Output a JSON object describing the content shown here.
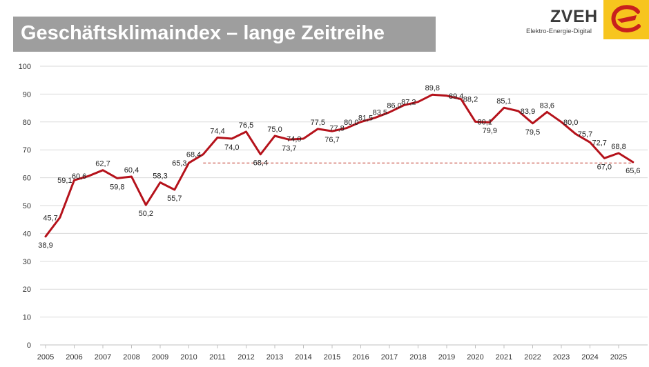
{
  "header": {
    "title": "Geschäftsklimaindex – lange Zeitreihe",
    "brand": "ZVEH",
    "tagline": "Elektro-Energie-Digital",
    "brand_color": "#f7c51e",
    "logo_icon": "zveh-e-logo-icon"
  },
  "chart_data": {
    "type": "line",
    "title": "Geschäftsklimaindex – lange Zeitreihe",
    "xlabel": "",
    "ylabel": "",
    "ylim": [
      0,
      100
    ],
    "xlim": [
      2005,
      2026
    ],
    "yticks": [
      0,
      10,
      20,
      30,
      40,
      50,
      60,
      70,
      80,
      90,
      100
    ],
    "xticks": [
      2005,
      2006,
      2007,
      2008,
      2009,
      2010,
      2011,
      2012,
      2013,
      2014,
      2015,
      2016,
      2017,
      2018,
      2019,
      2020,
      2021,
      2022,
      2023,
      2024,
      2025
    ],
    "grid": true,
    "legend": "none",
    "line_color": "#b5121b",
    "series": [
      {
        "x": [
          2005.0,
          2005.5,
          2006.0,
          2006.5,
          2007.0,
          2007.5,
          2008.0,
          2008.5,
          2009.0,
          2009.5,
          2010.0,
          2010.5,
          2011.0,
          2011.5,
          2012.0,
          2012.5,
          2013.0,
          2013.5,
          2014.0,
          2014.5,
          2015.0,
          2015.5,
          2016.0,
          2016.5,
          2017.0,
          2017.5,
          2018.0,
          2018.5,
          2019.0,
          2019.5,
          2020.0,
          2020.5,
          2021.0,
          2021.5,
          2022.0,
          2022.5,
          2023.0,
          2023.5,
          2024.0,
          2024.5,
          2025.0,
          2025.5
        ],
        "values": [
          38.9,
          45.7,
          59.1,
          60.6,
          62.7,
          59.8,
          60.4,
          50.2,
          58.3,
          55.7,
          65.3,
          68.4,
          74.4,
          74.0,
          76.5,
          68.4,
          75.0,
          73.7,
          74.0,
          77.5,
          76.7,
          77.8,
          80.0,
          81.5,
          83.5,
          86.0,
          87.2,
          89.8,
          89.4,
          88.2,
          80.1,
          79.9,
          85.1,
          83.9,
          79.5,
          83.6,
          80.0,
          75.7,
          72.7,
          67.0,
          68.8,
          65.6
        ],
        "labels": [
          "38,9",
          "45,7",
          "59,1",
          "60,6",
          "62,7",
          "59,8",
          "60,4",
          "50,2",
          "58,3",
          "55,7",
          "65,3",
          "68,4",
          "74,4",
          "74,0",
          "76,5",
          "68,4",
          "75,0",
          "73,7",
          "74,0",
          "77,5",
          "76,7",
          "77,8",
          "80,0",
          "81,5",
          "83,5",
          "86,0",
          "87,2",
          "89,8",
          "89,4",
          "88,2",
          "80,1",
          "79,9",
          "85,1",
          "83,9",
          "79,5",
          "83,6",
          "80,0",
          "75,7",
          "72,7",
          "67,0",
          "68,8",
          "65,6"
        ]
      }
    ],
    "reference_line": {
      "value": 65.3,
      "x_from": 2010.5,
      "x_to": 2025.5,
      "style": "dashed",
      "color": "#c0392b"
    }
  }
}
